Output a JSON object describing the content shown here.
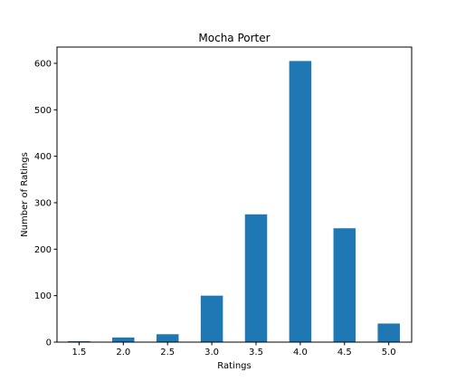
{
  "chart_data": {
    "type": "bar",
    "title": "Mocha Porter",
    "xlabel": "Ratings",
    "ylabel": "Number of Ratings",
    "categories": [
      "1.5",
      "2.0",
      "2.5",
      "3.0",
      "3.5",
      "4.0",
      "4.5",
      "5.0"
    ],
    "values": [
      2,
      10,
      17,
      100,
      275,
      605,
      245,
      40
    ],
    "ylim": [
      0,
      635
    ],
    "yticks": [
      "0",
      "100",
      "200",
      "300",
      "400",
      "500",
      "600"
    ],
    "grid": false,
    "legend": "none",
    "bar_color": "#1f77b4"
  }
}
